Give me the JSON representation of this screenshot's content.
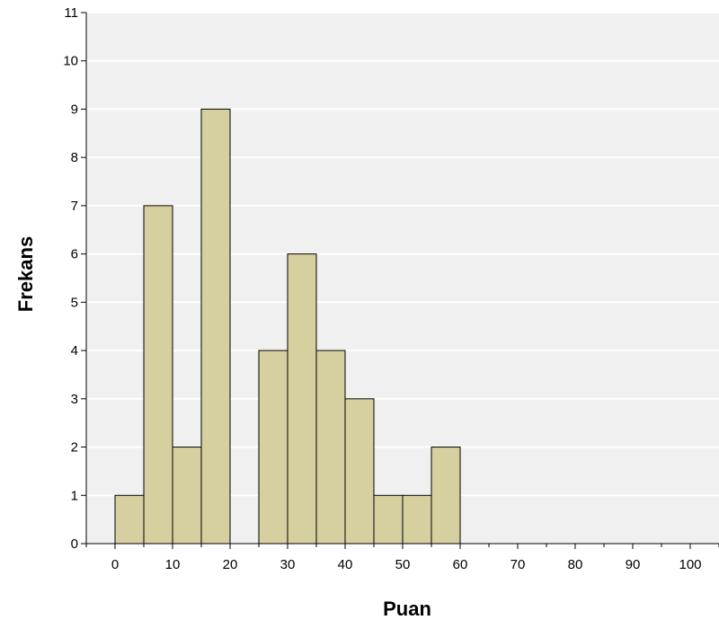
{
  "chart_data": {
    "type": "bar",
    "subtype": "histogram",
    "xlabel": "Puan",
    "ylabel": "Frekans",
    "bin_width": 5,
    "bins": [
      {
        "start": 0,
        "end": 5,
        "value": 1
      },
      {
        "start": 5,
        "end": 10,
        "value": 7
      },
      {
        "start": 10,
        "end": 15,
        "value": 2
      },
      {
        "start": 15,
        "end": 20,
        "value": 9
      },
      {
        "start": 20,
        "end": 25,
        "value": 0
      },
      {
        "start": 25,
        "end": 30,
        "value": 4
      },
      {
        "start": 30,
        "end": 35,
        "value": 6
      },
      {
        "start": 35,
        "end": 40,
        "value": 4
      },
      {
        "start": 40,
        "end": 45,
        "value": 3
      },
      {
        "start": 45,
        "end": 50,
        "value": 1
      },
      {
        "start": 50,
        "end": 55,
        "value": 1
      },
      {
        "start": 55,
        "end": 60,
        "value": 2
      }
    ],
    "xlim": [
      -5,
      105
    ],
    "ylim": [
      0,
      11
    ],
    "x_ticks": [
      "0",
      "10",
      "20",
      "30",
      "40",
      "50",
      "60",
      "70",
      "80",
      "90",
      "100"
    ],
    "y_ticks": [
      "0",
      "1",
      "2",
      "3",
      "4",
      "5",
      "6",
      "7",
      "8",
      "9",
      "10",
      "11"
    ],
    "grid": "horizontal",
    "colors": {
      "bar_fill": "#d6cfa0",
      "bar_stroke": "#000000",
      "plot_background": "#f0f0f0",
      "gridline": "#ffffff"
    }
  }
}
